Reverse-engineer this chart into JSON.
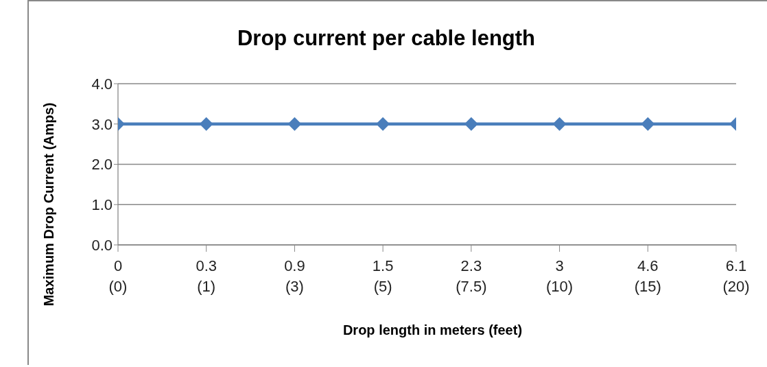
{
  "chart_data": {
    "type": "line",
    "title": "Drop current per cable length",
    "xlabel": "Drop length in meters (feet)",
    "ylabel": "Maximum Drop Current (Amps)",
    "categories": [
      "0\n(0)",
      "0.3\n(1)",
      "0.9\n(3)",
      "1.5\n(5)",
      "2.3\n(7.5)",
      "3\n(10)",
      "4.6\n(15)",
      "6.1\n(20)"
    ],
    "series": [
      {
        "color": "#4a7ebb",
        "values": [
          3.0,
          3.0,
          3.0,
          3.0,
          3.0,
          3.0,
          3.0,
          3.0
        ]
      }
    ],
    "ylim": [
      0,
      4
    ],
    "yticks": [
      {
        "value": 0,
        "label": "0.0"
      },
      {
        "value": 1,
        "label": "1.0"
      },
      {
        "value": 2,
        "label": "2.0"
      },
      {
        "value": 3,
        "label": "3.0"
      },
      {
        "value": 4,
        "label": "4.0"
      }
    ],
    "grid": "y",
    "legend": false,
    "marker": "diamond",
    "line_style": "solid"
  }
}
